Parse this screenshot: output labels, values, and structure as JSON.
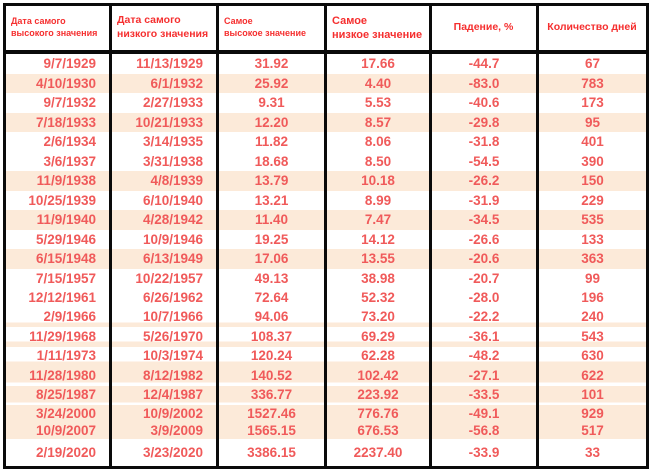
{
  "chart_data": {
    "type": "table",
    "title": "",
    "columns": [
      "Дата самого\nвысокого значения",
      "Дата самого\nнизкого значения",
      "Самое\nвысокое значение",
      "Самое\nнизкое значение",
      "Падение, %",
      "Количество дней"
    ],
    "rows": [
      {
        "cells": [
          "9/7/1929",
          "11/13/1929",
          "31.92",
          "17.66",
          "-44.7",
          "67"
        ],
        "band": "plain-white"
      },
      {
        "cells": [
          "4/10/1930",
          "6/1/1932",
          "25.92",
          "4.40",
          "-83.0",
          "783"
        ],
        "band": "plain-cream"
      },
      {
        "cells": [
          "9/7/1932",
          "2/27/1933",
          "9.31",
          "5.53",
          "-40.6",
          "173"
        ],
        "band": "plain-white"
      },
      {
        "cells": [
          "7/18/1933",
          "10/21/1933",
          "12.20",
          "8.57",
          "-29.8",
          "95"
        ],
        "band": "plain-cream"
      },
      {
        "cells": [
          "2/6/1934",
          "3/14/1935",
          "11.82",
          "8.06",
          "-31.8",
          "401"
        ],
        "band": "plain-white"
      },
      {
        "cells": [
          "3/6/1937",
          "3/31/1938",
          "18.68",
          "8.50",
          "-54.5",
          "390"
        ],
        "band": "plain-white"
      },
      {
        "cells": [
          "11/9/1938",
          "4/8/1939",
          "13.79",
          "10.18",
          "-26.2",
          "150"
        ],
        "band": "plain-cream"
      },
      {
        "cells": [
          "10/25/1939",
          "6/10/1940",
          "13.21",
          "8.99",
          "-31.9",
          "229"
        ],
        "band": "plain-white"
      },
      {
        "cells": [
          "11/9/1940",
          "4/28/1942",
          "11.40",
          "7.47",
          "-34.5",
          "535"
        ],
        "band": "plain-cream"
      },
      {
        "cells": [
          "5/29/1946",
          "10/9/1946",
          "19.25",
          "14.12",
          "-26.6",
          "133"
        ],
        "band": "plain-white"
      },
      {
        "cells": [
          "6/15/1948",
          "6/13/1949",
          "17.06",
          "13.55",
          "-20.6",
          "363"
        ],
        "band": "plain-cream"
      },
      {
        "cells": [
          "7/15/1957",
          "10/22/1957",
          "49.13",
          "38.98",
          "-20.7",
          "99"
        ],
        "band": "plain-white"
      },
      {
        "cells": [
          "12/12/1961",
          "6/26/1962",
          "72.64",
          "52.32",
          "-28.0",
          "196"
        ],
        "band": "plain-white"
      },
      {
        "cells": [
          "2/9/1966",
          "10/7/1966",
          "94.06",
          "73.20",
          "-22.2",
          "240"
        ],
        "band": "white-cream-strip"
      },
      {
        "cells": [
          "11/29/1968",
          "5/26/1970",
          "108.37",
          "69.29",
          "-36.1",
          "543"
        ],
        "band": "white-cream-strip"
      },
      {
        "cells": [
          "1/11/1973",
          "10/3/1974",
          "120.24",
          "62.28",
          "-48.2",
          "630"
        ],
        "band": "white-cream-strip"
      },
      {
        "cells": [
          "11/28/1980",
          "8/12/1982",
          "140.52",
          "102.42",
          "-27.1",
          "622"
        ],
        "band": "cream-white-strip"
      },
      {
        "cells": [
          "8/25/1987",
          "12/4/1987",
          "336.77",
          "223.92",
          "-33.5",
          "101"
        ],
        "band": "cream-white-strip"
      },
      {
        "cells": [
          "3/24/2000",
          "10/9/2002",
          "1527.46",
          "776.76",
          "-49.1",
          "929"
        ],
        "band": "cream-tall"
      },
      {
        "cells": [
          "10/9/2007",
          "3/9/2009",
          "1565.15",
          "676.53",
          "-56.8",
          "517"
        ],
        "band": "cream-short"
      },
      {
        "cells": [
          "2/19/2020",
          "3/23/2020",
          "3386.15",
          "2237.40",
          "-33.9",
          "33"
        ],
        "band": "white-tall"
      }
    ]
  },
  "colors": {
    "header_text": "#f52f2f",
    "cell_text": "#f05a5a",
    "row_shade": "#fcead9",
    "grid": "#0a0a0a",
    "background": "#ffffff"
  }
}
